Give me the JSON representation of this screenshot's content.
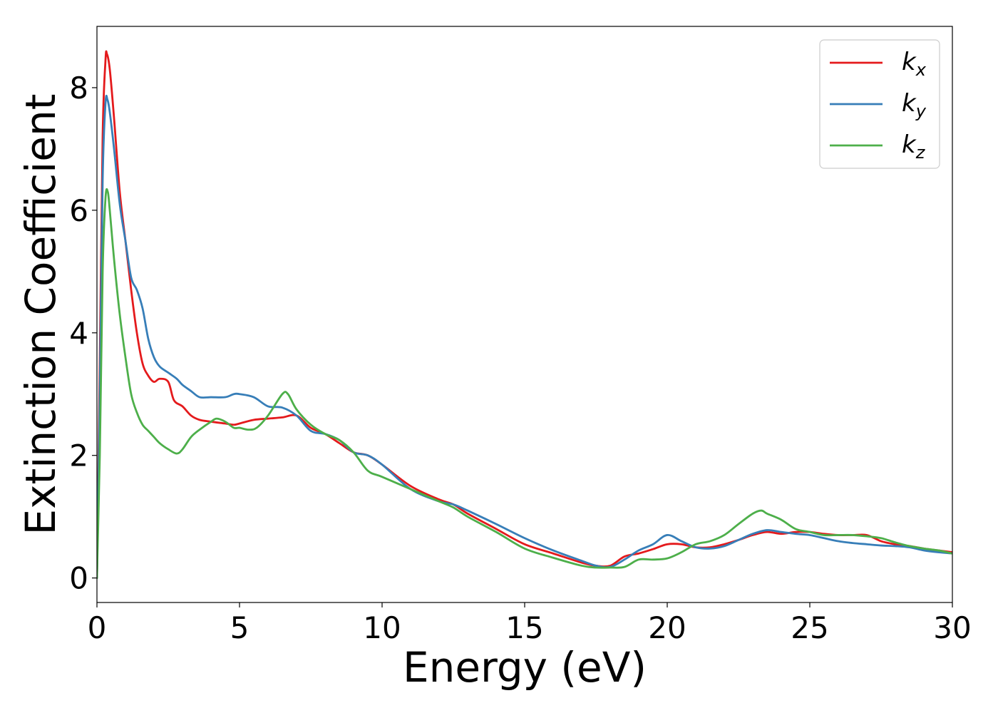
{
  "chart_data": {
    "type": "line",
    "xlabel": "Energy (eV)",
    "ylabel": "Extinction Coefficient",
    "xlim": [
      0,
      30
    ],
    "ylim": [
      -0.4,
      9.0
    ],
    "xticks": [
      0,
      5,
      10,
      15,
      20,
      25,
      30
    ],
    "yticks": [
      0,
      2,
      4,
      6,
      8
    ],
    "grid": false,
    "legend_position": "top-right",
    "series": [
      {
        "name": "k_x",
        "base": "k",
        "sub": "x",
        "color": "#e41a1c",
        "x": [
          0,
          0.1,
          0.2,
          0.3,
          0.35,
          0.45,
          0.6,
          0.8,
          1.0,
          1.2,
          1.4,
          1.6,
          1.8,
          2.0,
          2.2,
          2.5,
          2.7,
          3.0,
          3.3,
          3.6,
          4.0,
          4.5,
          4.8,
          5.0,
          5.5,
          6.0,
          6.5,
          7.0,
          7.5,
          8.0,
          8.5,
          9.0,
          9.5,
          10,
          11,
          12,
          12.5,
          13,
          14,
          15,
          16,
          17,
          17.5,
          18,
          18.5,
          19,
          19.5,
          20,
          20.5,
          21,
          21.5,
          22,
          22.5,
          23,
          23.5,
          24,
          24.5,
          25,
          25.5,
          26,
          26.5,
          27,
          27.5,
          28,
          28.5,
          29,
          29.5,
          30
        ],
        "y": [
          0.0,
          3.5,
          7.2,
          8.45,
          8.55,
          8.3,
          7.5,
          6.3,
          5.5,
          4.7,
          4.0,
          3.5,
          3.3,
          3.2,
          3.25,
          3.2,
          2.9,
          2.8,
          2.65,
          2.58,
          2.55,
          2.52,
          2.5,
          2.52,
          2.58,
          2.6,
          2.62,
          2.65,
          2.45,
          2.35,
          2.2,
          2.05,
          2.0,
          1.85,
          1.5,
          1.28,
          1.2,
          1.05,
          0.8,
          0.55,
          0.4,
          0.25,
          0.2,
          0.2,
          0.35,
          0.4,
          0.47,
          0.55,
          0.55,
          0.5,
          0.5,
          0.55,
          0.62,
          0.7,
          0.75,
          0.72,
          0.75,
          0.75,
          0.72,
          0.7,
          0.7,
          0.7,
          0.6,
          0.55,
          0.52,
          0.48,
          0.45,
          0.42
        ]
      },
      {
        "name": "k_y",
        "base": "k",
        "sub": "y",
        "color": "#377eb8",
        "x": [
          0,
          0.1,
          0.2,
          0.3,
          0.37,
          0.45,
          0.6,
          0.8,
          1.0,
          1.2,
          1.4,
          1.6,
          1.8,
          2.0,
          2.2,
          2.5,
          2.8,
          3.0,
          3.3,
          3.6,
          4.0,
          4.5,
          4.8,
          5.0,
          5.5,
          6.0,
          6.5,
          7.0,
          7.5,
          8.0,
          8.5,
          9.0,
          9.5,
          10,
          11,
          12,
          12.5,
          13,
          14,
          15,
          16,
          17,
          17.5,
          18,
          18.5,
          19,
          19.5,
          20,
          20.5,
          21,
          21.5,
          22,
          22.5,
          23,
          23.5,
          24,
          24.5,
          25,
          25.5,
          26,
          26.5,
          27,
          27.5,
          28,
          28.5,
          29,
          29.5,
          30
        ],
        "y": [
          0.0,
          3.0,
          6.5,
          7.75,
          7.8,
          7.6,
          7.0,
          6.1,
          5.5,
          4.9,
          4.7,
          4.4,
          3.9,
          3.6,
          3.45,
          3.35,
          3.25,
          3.15,
          3.05,
          2.95,
          2.95,
          2.95,
          3.0,
          3.0,
          2.95,
          2.8,
          2.78,
          2.65,
          2.4,
          2.35,
          2.25,
          2.05,
          2.0,
          1.85,
          1.45,
          1.25,
          1.2,
          1.1,
          0.88,
          0.65,
          0.45,
          0.28,
          0.2,
          0.18,
          0.3,
          0.45,
          0.55,
          0.7,
          0.6,
          0.5,
          0.48,
          0.52,
          0.62,
          0.72,
          0.78,
          0.75,
          0.72,
          0.7,
          0.65,
          0.6,
          0.57,
          0.55,
          0.53,
          0.52,
          0.5,
          0.45,
          0.42,
          0.4
        ]
      },
      {
        "name": "k_z",
        "base": "k",
        "sub": "z",
        "color": "#4daf4a",
        "x": [
          0,
          0.1,
          0.2,
          0.3,
          0.38,
          0.45,
          0.6,
          0.8,
          1.0,
          1.2,
          1.4,
          1.6,
          1.8,
          2.0,
          2.2,
          2.5,
          2.8,
          3.0,
          3.3,
          3.6,
          4.0,
          4.2,
          4.5,
          4.8,
          5.0,
          5.3,
          5.6,
          6.0,
          6.5,
          6.7,
          7.0,
          7.5,
          8.0,
          8.5,
          9.0,
          9.5,
          10,
          11,
          12,
          12.5,
          13,
          14,
          15,
          16,
          17,
          17.5,
          18,
          18.5,
          19,
          19.5,
          20,
          20.5,
          21,
          21.5,
          22,
          22.5,
          23,
          23.3,
          23.5,
          24,
          24.5,
          25,
          25.5,
          26,
          26.5,
          27,
          27.5,
          28,
          28.5,
          29,
          29.5,
          30
        ],
        "y": [
          0.0,
          2.0,
          5.0,
          6.2,
          6.3,
          6.0,
          5.2,
          4.3,
          3.6,
          3.0,
          2.7,
          2.5,
          2.4,
          2.3,
          2.2,
          2.1,
          2.03,
          2.1,
          2.3,
          2.42,
          2.55,
          2.6,
          2.55,
          2.45,
          2.45,
          2.42,
          2.45,
          2.65,
          3.0,
          3.0,
          2.75,
          2.5,
          2.35,
          2.25,
          2.05,
          1.75,
          1.65,
          1.45,
          1.25,
          1.15,
          1.0,
          0.75,
          0.48,
          0.33,
          0.2,
          0.17,
          0.17,
          0.18,
          0.3,
          0.3,
          0.32,
          0.42,
          0.55,
          0.6,
          0.7,
          0.88,
          1.05,
          1.1,
          1.05,
          0.95,
          0.8,
          0.75,
          0.7,
          0.7,
          0.7,
          0.68,
          0.65,
          0.58,
          0.52,
          0.48,
          0.45,
          0.4
        ]
      }
    ]
  }
}
